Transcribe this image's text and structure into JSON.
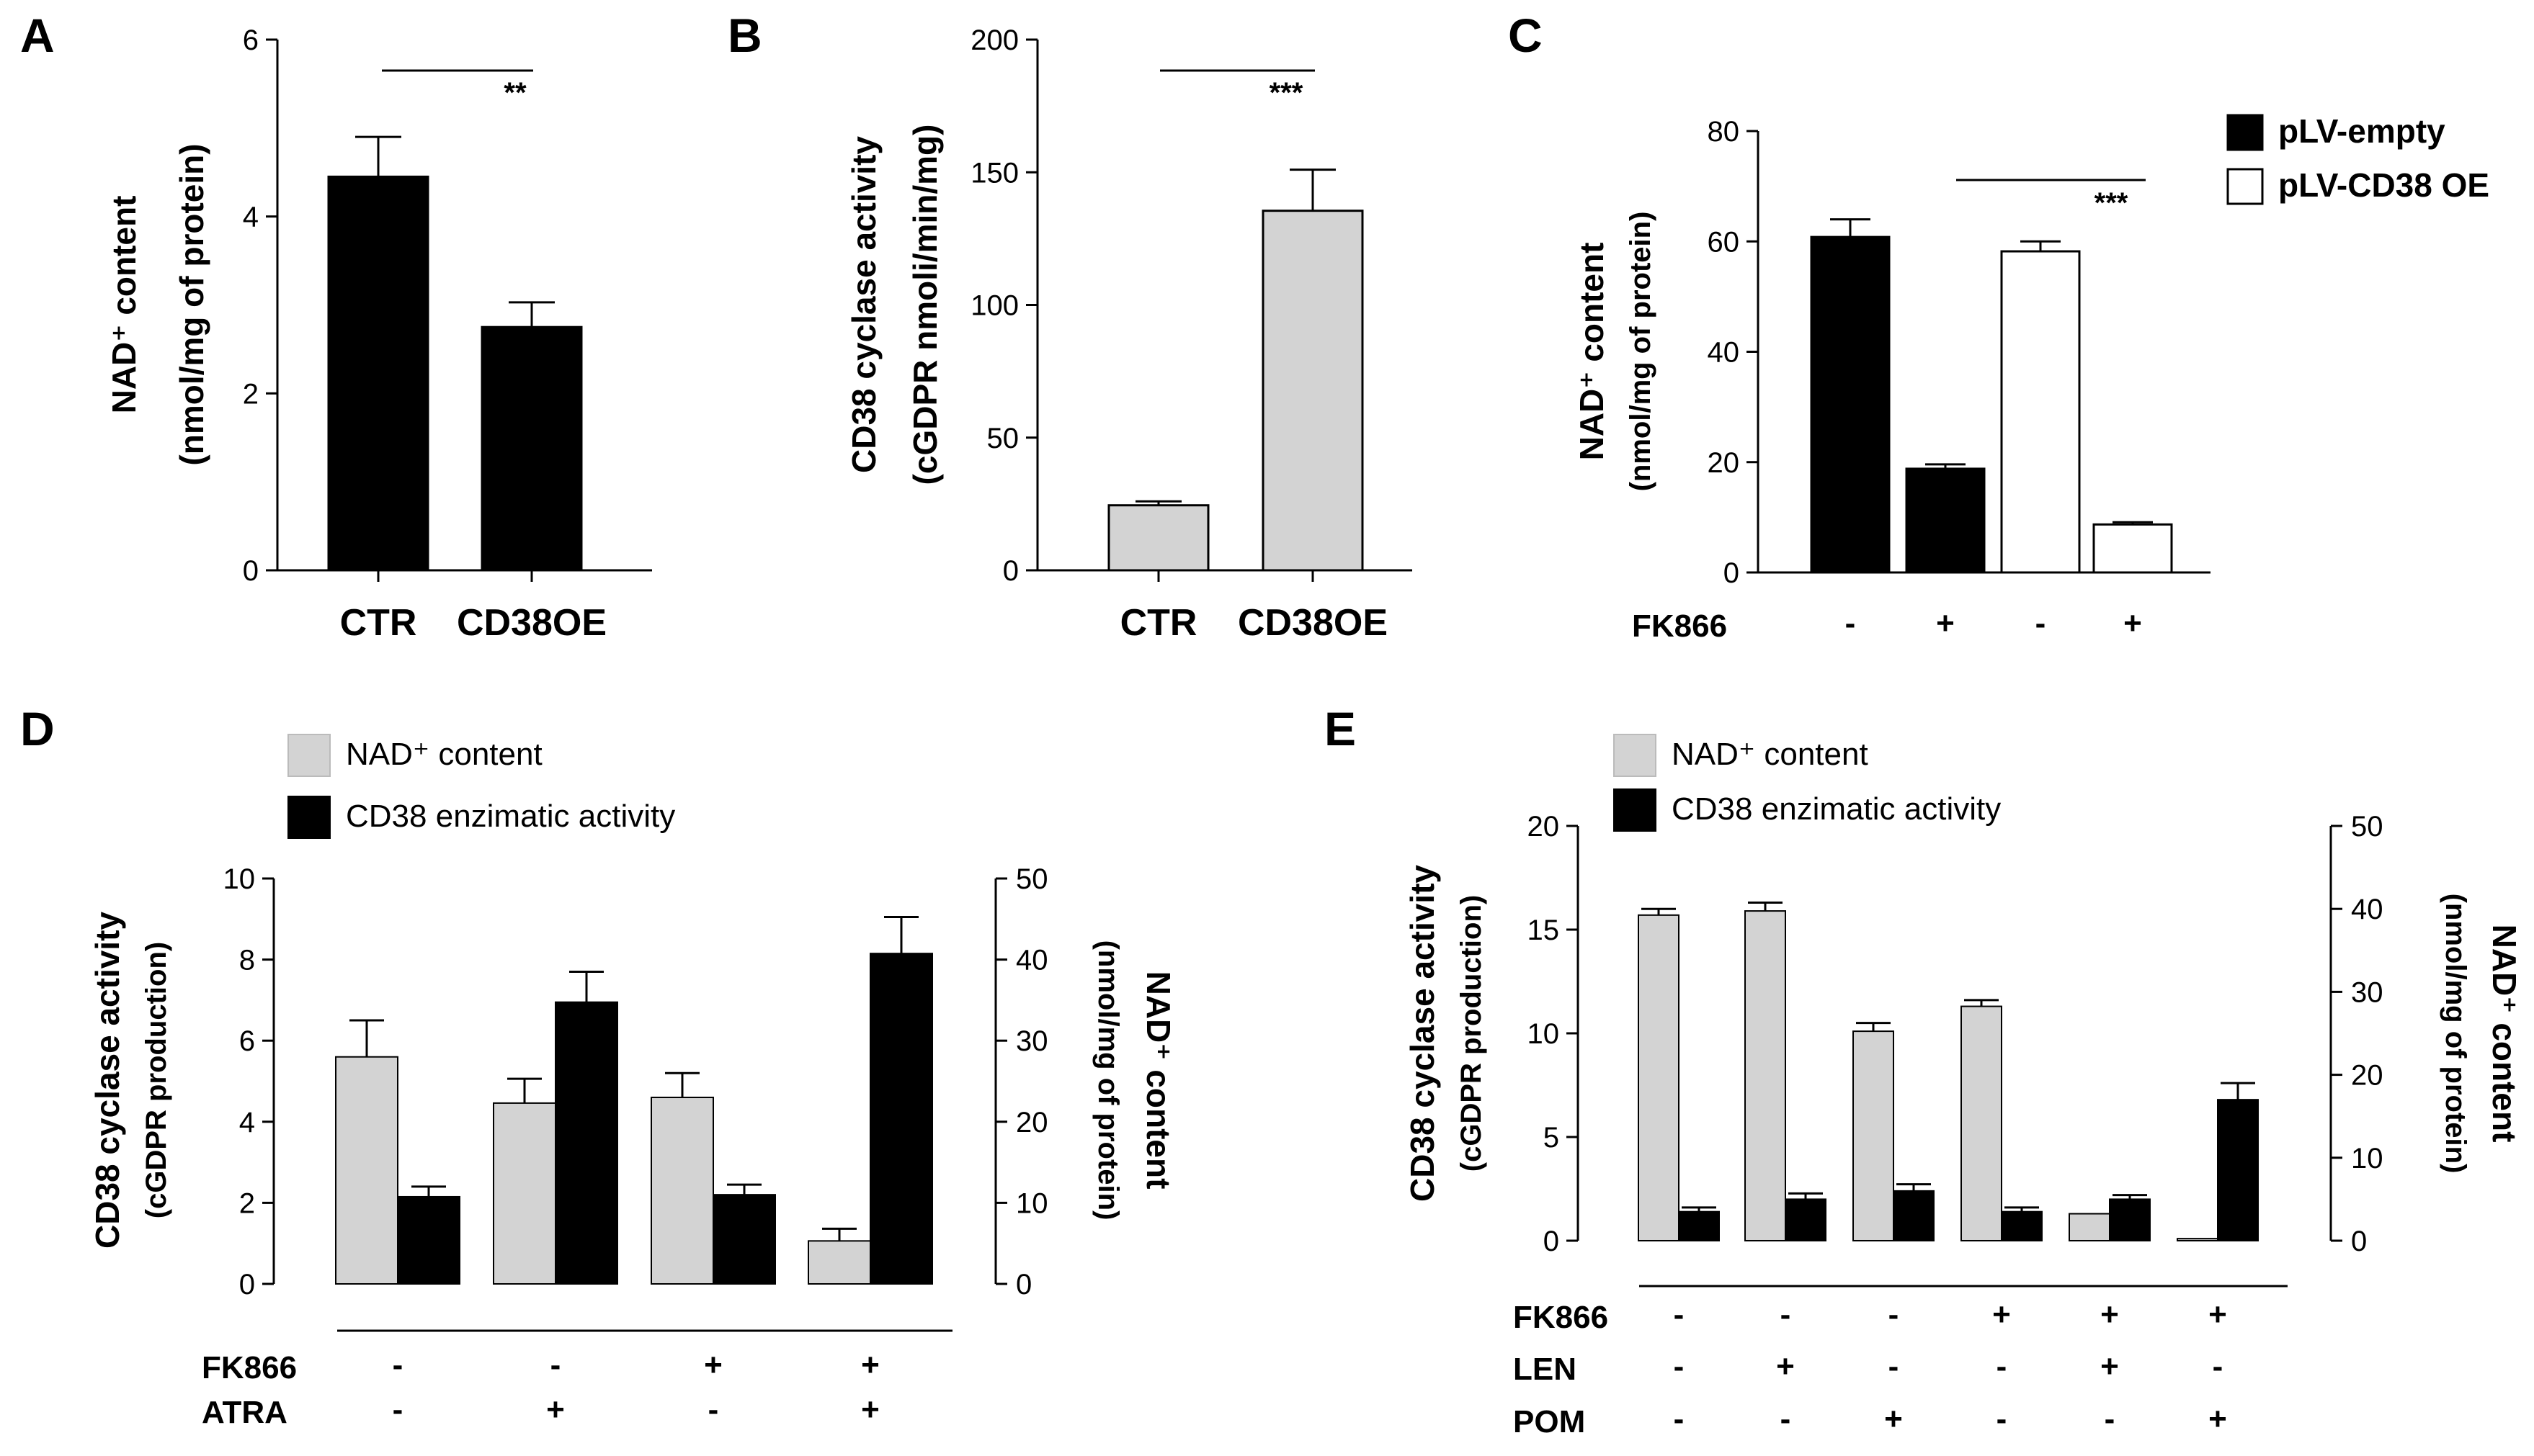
{
  "colors": {
    "black": "#000000",
    "grey": "#d3d3d3",
    "white": "#ffffff"
  },
  "chart_data": [
    {
      "panel": "A",
      "type": "bar",
      "categories": [
        "CTR",
        "CD38OE"
      ],
      "values": [
        4.45,
        2.75
      ],
      "errors": [
        0.45,
        0.28
      ],
      "ylabel_main": "NAD⁺ content",
      "ylabel_sub": "(nmol/mg of protein)",
      "ylim": [
        0,
        6
      ],
      "yticks": [
        "0",
        "2",
        "4",
        "6"
      ],
      "bar_color": "#000000",
      "significance": "**"
    },
    {
      "panel": "B",
      "type": "bar",
      "categories": [
        "CTR",
        "CD38OE"
      ],
      "values": [
        24.5,
        135.5
      ],
      "errors": [
        1.5,
        15.5
      ],
      "ylabel_main": "CD38 cyclase activity",
      "ylabel_sub": "(cGDPR nmoli/min/mg)",
      "ylim": [
        0,
        200
      ],
      "yticks": [
        "0",
        "50",
        "100",
        "150",
        "200"
      ],
      "bar_color": "#d3d3d3",
      "significance": "***"
    },
    {
      "panel": "C",
      "type": "bar",
      "conditions": [
        {
          "name": "FK866",
          "values": [
            "-",
            "+",
            "-",
            "+"
          ]
        }
      ],
      "values": [
        60.8,
        18.8,
        58.2,
        8.7
      ],
      "errors": [
        3.2,
        0.8,
        1.8,
        0.4
      ],
      "bar_series": [
        0,
        0,
        1,
        1
      ],
      "series": [
        {
          "name": "pLV-empty",
          "color": "#000000"
        },
        {
          "name": "pLV-CD38 OE",
          "color": "#ffffff"
        }
      ],
      "ylabel_main": "NAD⁺ content",
      "ylabel_sub": "(nmol/mg of protein)",
      "ylim": [
        0,
        80
      ],
      "yticks": [
        "0",
        "20",
        "40",
        "60",
        "80"
      ],
      "significance": "***"
    },
    {
      "panel": "D",
      "type": "bar",
      "conditions": [
        {
          "name": "FK866",
          "values": [
            "-",
            "-",
            "+",
            "+"
          ]
        },
        {
          "name": "ATRA",
          "values": [
            "-",
            "+",
            "-",
            "+"
          ]
        }
      ],
      "series": [
        {
          "name": "NAD⁺ content",
          "color": "#d3d3d3",
          "axis": "right",
          "values": [
            28,
            22.3,
            23,
            5.3
          ],
          "errors": [
            4.5,
            3,
            3,
            1.5
          ]
        },
        {
          "name": "CD38 enzimatic activity",
          "color": "#000000",
          "axis": "left",
          "values": [
            2.15,
            6.95,
            2.2,
            8.15
          ],
          "errors": [
            0.25,
            0.75,
            0.25,
            0.9
          ]
        }
      ],
      "ylabel_left_main": "CD38 cyclase activity",
      "ylabel_left_sub": "(cGDPR production)",
      "ylabel_right_main": "NAD⁺ content",
      "ylabel_right_sub": "(nmol/mg of protein)",
      "ylim_left": [
        0,
        10
      ],
      "ylim_right": [
        0,
        50
      ],
      "yticks_left": [
        "0",
        "2",
        "4",
        "6",
        "8",
        "10"
      ],
      "yticks_right": [
        "0",
        "10",
        "20",
        "30",
        "40",
        "50"
      ]
    },
    {
      "panel": "E",
      "type": "bar",
      "conditions": [
        {
          "name": "FK866",
          "values": [
            "-",
            "-",
            "-",
            "+",
            "+",
            "+"
          ]
        },
        {
          "name": "LEN",
          "values": [
            "-",
            "+",
            "-",
            "-",
            "+",
            "-"
          ]
        },
        {
          "name": "POM",
          "values": [
            "-",
            "-",
            "+",
            "-",
            "-",
            "+"
          ]
        }
      ],
      "series": [
        {
          "name": "NAD⁺ content",
          "color": "#d3d3d3",
          "axis": "left",
          "values": [
            15.7,
            15.9,
            10.1,
            11.3,
            1.3,
            0.1
          ],
          "errors": [
            0.3,
            0.4,
            0.4,
            0.3,
            0,
            0
          ]
        },
        {
          "name": "CD38 enzimatic activity",
          "color": "#000000",
          "axis": "right",
          "values": [
            3.5,
            5,
            6,
            3.5,
            5,
            17
          ],
          "errors": [
            0.5,
            0.7,
            0.8,
            0.5,
            0.5,
            2
          ]
        }
      ],
      "ylabel_left_main": "CD38 cyclase activity",
      "ylabel_left_sub": "(cGDPR production)",
      "ylabel_right_main": "NAD⁺ content",
      "ylabel_right_sub": "(nmol/mg of protein)",
      "ylim_left": [
        0,
        20
      ],
      "ylim_right": [
        0,
        50
      ],
      "yticks_left": [
        "0",
        "5",
        "10",
        "15",
        "20"
      ],
      "yticks_right": [
        "0",
        "10",
        "20",
        "30",
        "40",
        "50"
      ]
    }
  ]
}
